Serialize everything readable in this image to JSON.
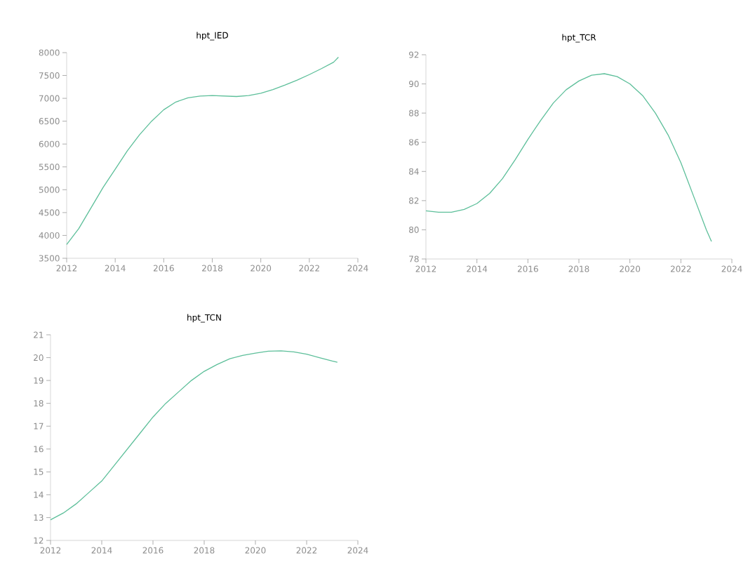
{
  "chart_data": [
    {
      "type": "line",
      "title": "hpt_IED",
      "xlim": [
        2012,
        2024
      ],
      "xticks": [
        2012,
        2014,
        2016,
        2018,
        2020,
        2022,
        2024
      ],
      "ylim": [
        3500,
        8000
      ],
      "yticks": [
        3500,
        4000,
        4500,
        5000,
        5500,
        6000,
        6500,
        7000,
        7500,
        8000
      ],
      "x": [
        2012,
        2012.5,
        2013,
        2013.5,
        2014,
        2014.5,
        2015,
        2015.5,
        2016,
        2016.5,
        2017,
        2017.5,
        2018,
        2018.5,
        2019,
        2019.5,
        2020,
        2020.5,
        2021,
        2021.5,
        2022,
        2022.5,
        2023,
        2023.2
      ],
      "series": [
        {
          "color": "#5dbf9a",
          "values": [
            3800,
            4150,
            4600,
            5050,
            5450,
            5850,
            6200,
            6500,
            6750,
            6920,
            7010,
            7050,
            7060,
            7050,
            7040,
            7060,
            7110,
            7190,
            7290,
            7400,
            7520,
            7650,
            7790,
            7900
          ]
        }
      ]
    },
    {
      "type": "line",
      "title": "hpt_TCR",
      "xlim": [
        2012,
        2024
      ],
      "xticks": [
        2012,
        2014,
        2016,
        2018,
        2020,
        2022,
        2024
      ],
      "ylim": [
        78,
        92
      ],
      "yticks": [
        78,
        80,
        82,
        84,
        86,
        88,
        90,
        92
      ],
      "x": [
        2012,
        2012.5,
        2013,
        2013.5,
        2014,
        2014.5,
        2015,
        2015.5,
        2016,
        2016.5,
        2017,
        2017.5,
        2018,
        2018.5,
        2019,
        2019.5,
        2020,
        2020.5,
        2021,
        2021.5,
        2022,
        2022.5,
        2023,
        2023.2
      ],
      "series": [
        {
          "color": "#5dbf9a",
          "values": [
            81.3,
            81.2,
            81.2,
            81.4,
            81.8,
            82.5,
            83.5,
            84.8,
            86.2,
            87.5,
            88.7,
            89.6,
            90.2,
            90.6,
            90.7,
            90.5,
            90.0,
            89.2,
            88.0,
            86.5,
            84.6,
            82.3,
            80.0,
            79.2
          ]
        }
      ]
    },
    {
      "type": "line",
      "title": "hpt_TCN",
      "xlim": [
        2012,
        2024
      ],
      "xticks": [
        2012,
        2014,
        2016,
        2018,
        2020,
        2022,
        2024
      ],
      "ylim": [
        12,
        21
      ],
      "yticks": [
        12,
        13,
        14,
        15,
        16,
        17,
        18,
        19,
        20,
        21
      ],
      "x": [
        2012,
        2012.5,
        2013,
        2013.5,
        2014,
        2014.5,
        2015,
        2015.5,
        2016,
        2016.5,
        2017,
        2017.5,
        2018,
        2018.5,
        2019,
        2019.5,
        2020,
        2020.5,
        2021,
        2021.5,
        2022,
        2022.5,
        2023,
        2023.2
      ],
      "series": [
        {
          "color": "#5dbf9a",
          "values": [
            12.9,
            13.2,
            13.6,
            14.1,
            14.6,
            15.3,
            16.0,
            16.7,
            17.4,
            18.0,
            18.5,
            19.0,
            19.4,
            19.7,
            19.95,
            20.1,
            20.2,
            20.28,
            20.3,
            20.25,
            20.15,
            20.0,
            19.85,
            19.8
          ]
        }
      ]
    }
  ]
}
